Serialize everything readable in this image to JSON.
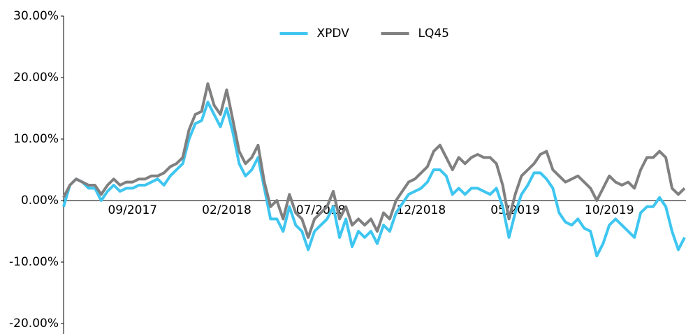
{
  "chart_data": {
    "type": "line",
    "categories": [
      null,
      null,
      null,
      null,
      null,
      null,
      null,
      null,
      null,
      null,
      null,
      "09/2017",
      null,
      null,
      null,
      null,
      null,
      null,
      null,
      null,
      null,
      null,
      null,
      null,
      null,
      null,
      "02/2018",
      null,
      null,
      null,
      null,
      null,
      null,
      null,
      null,
      null,
      null,
      null,
      null,
      null,
      null,
      "07/2018",
      null,
      null,
      null,
      null,
      null,
      null,
      null,
      null,
      null,
      null,
      null,
      null,
      null,
      null,
      null,
      "12/2018",
      null,
      null,
      null,
      null,
      null,
      null,
      null,
      null,
      null,
      null,
      null,
      null,
      null,
      null,
      "05/2019",
      null,
      null,
      null,
      null,
      null,
      null,
      null,
      null,
      null,
      null,
      null,
      null,
      null,
      null,
      "10/2019",
      null,
      null,
      null,
      null,
      null,
      null,
      null,
      null,
      null,
      null,
      null,
      null
    ],
    "series": [
      {
        "name": "XPDV",
        "color": "#3ec6f0",
        "values": [
          -1,
          2.5,
          3.5,
          3,
          2,
          2,
          0,
          1.5,
          2.5,
          1.5,
          2,
          2,
          2.5,
          2.5,
          3,
          3.5,
          2.5,
          4,
          5,
          6,
          10,
          12.5,
          13,
          16,
          14,
          12,
          15,
          11,
          6,
          4,
          5,
          7,
          2,
          -3,
          -3,
          -5,
          -1,
          -4,
          -5,
          -8,
          -5,
          -4,
          -3,
          -1,
          -6,
          -3,
          -7.5,
          -5,
          -6,
          -5,
          -7,
          -4,
          -5,
          -2,
          -0.5,
          1,
          1.5,
          2,
          3,
          5,
          5,
          4,
          1,
          2,
          1,
          2,
          2,
          1.5,
          1,
          2,
          -1,
          -6,
          -2,
          1,
          2.5,
          4.5,
          4.5,
          3.5,
          2,
          -2,
          -3.5,
          -4,
          -3,
          -4.5,
          -5,
          -9,
          -7,
          -4,
          -3,
          -4,
          -5,
          -6,
          -2,
          -1,
          -1,
          0.5,
          -1,
          -5,
          -8,
          -6
        ]
      },
      {
        "name": "LQ45",
        "color": "#808080",
        "values": [
          0.5,
          2.5,
          3.5,
          3,
          2.5,
          2.5,
          1,
          2.5,
          3.5,
          2.5,
          3,
          3,
          3.5,
          3.5,
          4,
          4,
          4.5,
          5.5,
          6,
          7,
          11.5,
          14,
          14.5,
          19,
          15.5,
          14,
          18,
          13,
          8,
          6,
          7,
          9,
          3,
          -1,
          0,
          -3,
          1,
          -2,
          -3,
          -6,
          -3,
          -2,
          -1,
          1.5,
          -3,
          -1,
          -4,
          -3,
          -4,
          -3,
          -5,
          -2,
          -3,
          0,
          1.5,
          3,
          3.5,
          4.5,
          5.5,
          8,
          9,
          7,
          5,
          7,
          6,
          7,
          7.5,
          7,
          7,
          6,
          2.5,
          -3,
          1,
          4,
          5,
          6,
          7.5,
          8,
          5,
          4,
          3,
          3.5,
          4,
          3,
          2,
          0,
          2,
          4,
          3,
          2.5,
          3,
          2,
          5,
          7,
          7,
          8,
          7,
          2,
          1,
          2
        ]
      }
    ],
    "ylim": [
      -21.7,
      30
    ],
    "yticks": [
      {
        "value": -20,
        "label": "-20.00%"
      },
      {
        "value": -10,
        "label": "-10.00%"
      },
      {
        "value": 0,
        "label": "0.00%"
      },
      {
        "value": 10,
        "label": "10.00%"
      },
      {
        "value": 20,
        "label": "20.00%"
      },
      {
        "value": 30,
        "label": "30.00%"
      }
    ],
    "legend": "upper center"
  }
}
